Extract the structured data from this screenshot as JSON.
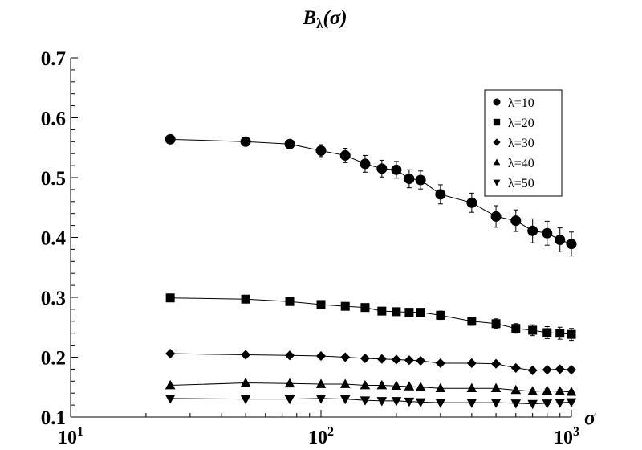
{
  "chart_data": {
    "type": "scatter",
    "title_main": "B",
    "title_sub": "λ",
    "title_rest": "(σ)",
    "xlabel": "σ",
    "ylabel": "",
    "xscale": "log",
    "xlim": [
      10,
      1000
    ],
    "ylim": [
      0.1,
      0.7
    ],
    "grid": false,
    "legend_position": "top-right",
    "x_ticks": [
      {
        "value": 10,
        "base": "10",
        "exp": "1"
      },
      {
        "value": 100,
        "base": "10",
        "exp": "2"
      },
      {
        "value": 1000,
        "base": "10",
        "exp": "3"
      }
    ],
    "y_ticks": [
      {
        "value": 0.1,
        "label": "0.1"
      },
      {
        "value": 0.2,
        "label": "0.2"
      },
      {
        "value": 0.3,
        "label": "0.3"
      },
      {
        "value": 0.4,
        "label": "0.4"
      },
      {
        "value": 0.5,
        "label": "0.5"
      },
      {
        "value": 0.6,
        "label": "0.6"
      },
      {
        "value": 0.7,
        "label": "0.7"
      }
    ],
    "x": [
      25,
      50,
      75,
      100,
      125,
      150,
      175,
      200,
      225,
      250,
      300,
      400,
      500,
      600,
      700,
      800,
      900,
      1000
    ],
    "series": [
      {
        "name": "λ=10",
        "marker": "circle",
        "values": [
          0.564,
          0.56,
          0.556,
          0.545,
          0.537,
          0.523,
          0.515,
          0.513,
          0.498,
          0.496,
          0.472,
          0.458,
          0.435,
          0.428,
          0.411,
          0.407,
          0.396,
          0.389
        ],
        "errors": [
          0.004,
          0.005,
          0.006,
          0.01,
          0.012,
          0.014,
          0.014,
          0.014,
          0.015,
          0.015,
          0.016,
          0.016,
          0.018,
          0.018,
          0.02,
          0.02,
          0.02,
          0.02
        ]
      },
      {
        "name": "λ=20",
        "marker": "square",
        "values": [
          0.299,
          0.297,
          0.293,
          0.288,
          0.285,
          0.283,
          0.277,
          0.276,
          0.275,
          0.275,
          0.27,
          0.26,
          0.256,
          0.248,
          0.245,
          0.241,
          0.24,
          0.238
        ],
        "errors": [
          0.002,
          0.002,
          0.003,
          0.004,
          0.004,
          0.005,
          0.005,
          0.006,
          0.006,
          0.006,
          0.007,
          0.007,
          0.008,
          0.008,
          0.009,
          0.01,
          0.01,
          0.01
        ]
      },
      {
        "name": "λ=30",
        "marker": "diamond",
        "values": [
          0.206,
          0.204,
          0.203,
          0.202,
          0.2,
          0.198,
          0.197,
          0.196,
          0.195,
          0.194,
          0.19,
          0.19,
          0.189,
          0.182,
          0.178,
          0.179,
          0.18,
          0.179
        ],
        "errors": [
          0.001,
          0.001,
          0.001,
          0.002,
          0.002,
          0.002,
          0.002,
          0.003,
          0.003,
          0.003,
          0.003,
          0.003,
          0.004,
          0.004,
          0.004,
          0.004,
          0.004,
          0.004
        ]
      },
      {
        "name": "λ=40",
        "marker": "triangle-up",
        "values": [
          0.153,
          0.157,
          0.156,
          0.155,
          0.155,
          0.153,
          0.153,
          0.152,
          0.151,
          0.15,
          0.148,
          0.148,
          0.148,
          0.145,
          0.143,
          0.144,
          0.143,
          0.142
        ],
        "errors": [
          0.001,
          0.001,
          0.001,
          0.001,
          0.001,
          0.002,
          0.002,
          0.002,
          0.002,
          0.002,
          0.002,
          0.002,
          0.003,
          0.003,
          0.003,
          0.003,
          0.003,
          0.003
        ]
      },
      {
        "name": "λ=50",
        "marker": "triangle-down",
        "values": [
          0.131,
          0.13,
          0.13,
          0.131,
          0.13,
          0.128,
          0.127,
          0.127,
          0.126,
          0.125,
          0.124,
          0.124,
          0.124,
          0.123,
          0.122,
          0.123,
          0.124,
          0.125
        ],
        "errors": [
          0.001,
          0.001,
          0.001,
          0.001,
          0.001,
          0.001,
          0.001,
          0.001,
          0.001,
          0.002,
          0.002,
          0.002,
          0.002,
          0.002,
          0.002,
          0.002,
          0.002,
          0.002
        ]
      }
    ]
  }
}
